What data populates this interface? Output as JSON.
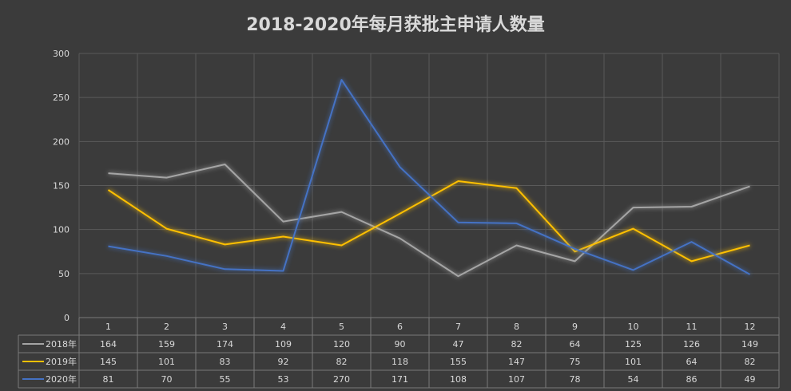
{
  "chart_data": {
    "type": "line",
    "title": "2018-2020年每月获批主申请人数量",
    "xlabel": "",
    "ylabel": "",
    "categories": [
      "1",
      "2",
      "3",
      "4",
      "5",
      "6",
      "7",
      "8",
      "9",
      "10",
      "11",
      "12"
    ],
    "ylim": [
      0,
      300
    ],
    "yticks": [
      "0",
      "50",
      "100",
      "150",
      "200",
      "250",
      "300"
    ],
    "grid": true,
    "legend": "data-table",
    "series": [
      {
        "name": "2018年",
        "color": "#a5a5a5",
        "values": [
          164,
          159,
          174,
          109,
          120,
          90,
          47,
          82,
          64,
          125,
          126,
          149
        ]
      },
      {
        "name": "2019年",
        "color": "#ffc000",
        "values": [
          145,
          101,
          83,
          92,
          82,
          118,
          155,
          147,
          75,
          101,
          64,
          82
        ]
      },
      {
        "name": "2020年",
        "color": "#4472c4",
        "values": [
          81,
          70,
          55,
          53,
          270,
          171,
          108,
          107,
          78,
          54,
          86,
          49
        ]
      }
    ]
  }
}
